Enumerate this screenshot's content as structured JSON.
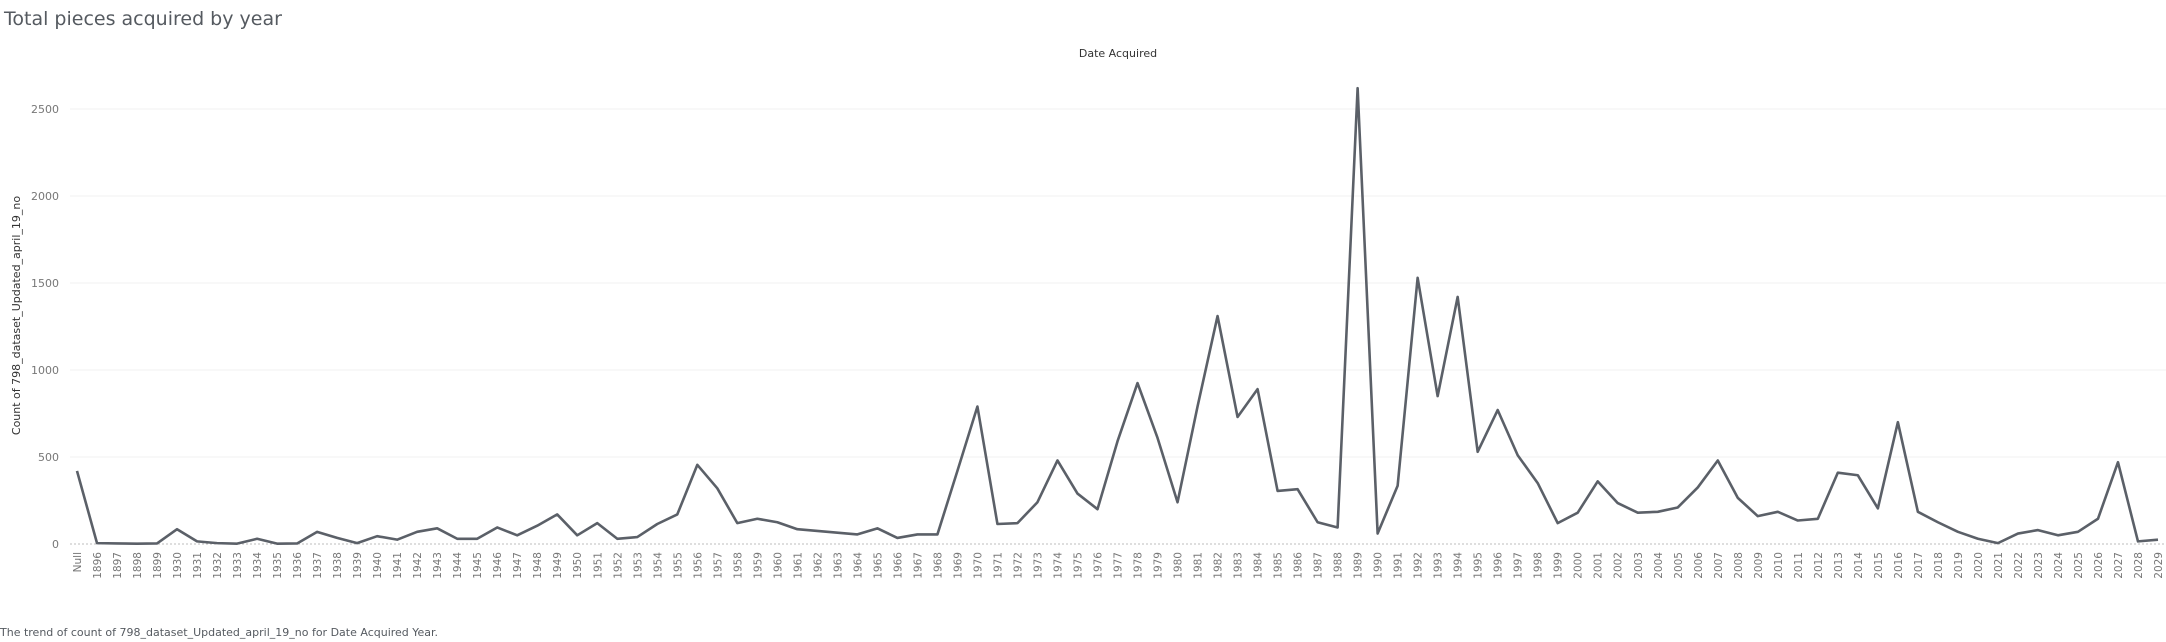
{
  "title": "Total pieces acquired by year",
  "caption": "The trend of count of 798_dataset_Updated_april_19_no for Date Acquired Year.",
  "chart_data": {
    "type": "line",
    "xlabel": "Date Acquired",
    "ylabel": "Count of 798_dataset_Updated_april_19_no",
    "ylim": [
      0,
      2750
    ],
    "yticks": [
      0,
      500,
      1000,
      1500,
      2000,
      2500
    ],
    "grid": true,
    "line_color": "#5b6068",
    "categories": [
      "Null",
      "1896",
      "1897",
      "1898",
      "1899",
      "1930",
      "1931",
      "1932",
      "1933",
      "1934",
      "1935",
      "1936",
      "1937",
      "1938",
      "1939",
      "1940",
      "1941",
      "1942",
      "1943",
      "1944",
      "1945",
      "1946",
      "1947",
      "1948",
      "1949",
      "1950",
      "1951",
      "1952",
      "1953",
      "1954",
      "1955",
      "1956",
      "1957",
      "1958",
      "1959",
      "1960",
      "1961",
      "1962",
      "1963",
      "1964",
      "1965",
      "1966",
      "1967",
      "1968",
      "1969",
      "1970",
      "1971",
      "1972",
      "1973",
      "1974",
      "1975",
      "1976",
      "1977",
      "1978",
      "1979",
      "1980",
      "1981",
      "1982",
      "1983",
      "1984",
      "1985",
      "1986",
      "1987",
      "1988",
      "1989",
      "1990",
      "1991",
      "1992",
      "1993",
      "1994",
      "1995",
      "1996",
      "1997",
      "1998",
      "1999",
      "2000",
      "2001",
      "2002",
      "2003",
      "2004",
      "2005",
      "2006",
      "2007",
      "2008",
      "2009",
      "2010",
      "2011",
      "2012",
      "2013",
      "2014",
      "2015",
      "2016",
      "2017",
      "2018",
      "2019",
      "2020",
      "2021",
      "2022",
      "2023",
      "2024",
      "2025",
      "2026",
      "2027",
      "2028",
      "2029"
    ],
    "values": [
      420,
      5,
      3,
      2,
      3,
      85,
      15,
      5,
      2,
      30,
      2,
      3,
      70,
      35,
      5,
      45,
      25,
      70,
      90,
      30,
      30,
      95,
      50,
      105,
      170,
      50,
      120,
      30,
      40,
      115,
      170,
      455,
      320,
      120,
      145,
      125,
      85,
      75,
      65,
      55,
      90,
      35,
      55,
      55,
      420,
      790,
      115,
      120,
      240,
      480,
      290,
      200,
      590,
      925,
      610,
      240,
      790,
      1310,
      730,
      890,
      305,
      315,
      125,
      95,
      2620,
      60,
      335,
      1530,
      850,
      1420,
      530,
      770,
      510,
      350,
      120,
      180,
      360,
      235,
      180,
      185,
      210,
      325,
      480,
      265,
      160,
      185,
      135,
      145,
      410,
      395,
      205,
      700,
      185,
      125,
      70,
      30,
      5,
      60,
      80,
      50,
      70,
      145,
      470,
      15,
      25
    ]
  }
}
